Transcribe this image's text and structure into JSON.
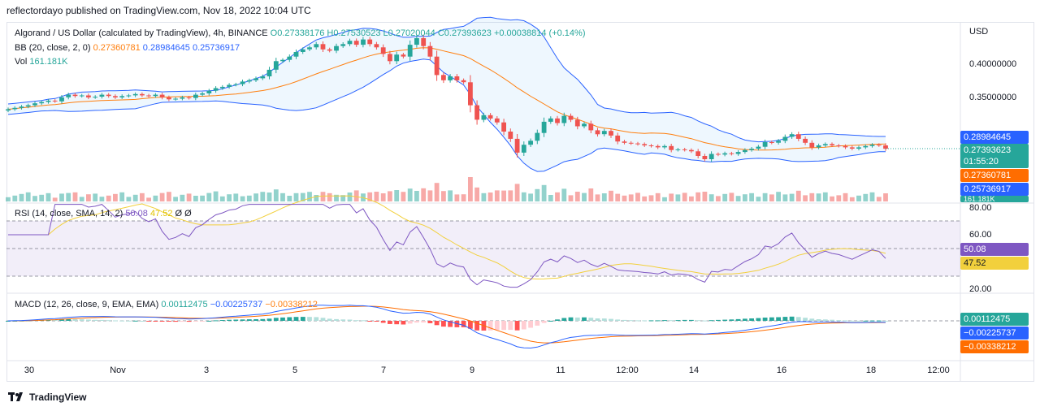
{
  "header": {
    "publisher_line": "reflectordayo published on TradingView.com, Nov 18, 2022 10:04 UTC"
  },
  "legend": {
    "symbol": "Algorand / US Dollar (calculated by TradingView), 4h, BINANCE",
    "open": "O0.27338176",
    "high": "H0.27530523",
    "low": "L0.27020044",
    "close": "C0.27393623",
    "change": "+0.00038814 (+0.14%)",
    "bb_label": "BB (20, close, 2, 0)",
    "bb_basis": "0.27360781",
    "bb_upper": "0.28984645",
    "bb_lower": "0.25736917",
    "vol_label": "Vol",
    "vol_value": "161.181K",
    "rsi_label": "RSI (14, close, SMA, 14, 2)",
    "rsi_value": "50.08",
    "rsi_sma": "47.52",
    "rsi_extra": "Ø Ø",
    "macd_label": "MACD (12, 26, close, 9, EMA, EMA)",
    "macd_hist": "0.00112475",
    "macd_line": "−0.00225737",
    "macd_signal": "−0.00338212"
  },
  "price_axis": {
    "currency": "USD",
    "ticks": [
      "0.40000000",
      "0.35000000"
    ]
  },
  "price_tags": {
    "bb_upper": "0.28984645",
    "last_price": "0.27393623",
    "countdown": "01:55:20",
    "bb_basis": "0.27360781",
    "bb_lower": "0.25736917",
    "vol_partial": "161.181K"
  },
  "rsi_axis": {
    "ticks": [
      "80.00",
      "60.00",
      "20.00"
    ],
    "tag_rsi": "50.08",
    "tag_sma": "47.52"
  },
  "macd_axis": {
    "tag_hist": "0.00112475",
    "tag_macd": "−0.00225737",
    "tag_signal": "−0.00338212"
  },
  "time_axis": {
    "labels": [
      "30",
      "Nov",
      "3",
      "5",
      "7",
      "9",
      "11",
      "12:00",
      "14",
      "16",
      "18",
      "12:00"
    ]
  },
  "footer": {
    "brand": "TradingView"
  },
  "colors": {
    "up": "#26a69a",
    "down": "#ef5350",
    "bb_basis": "#ff7f0e",
    "bb_band": "#2962ff",
    "rsi": "#7e57c2",
    "rsi_sma": "#f2d03c",
    "macd": "#2962ff",
    "signal": "#ff6d00"
  },
  "chart_data": {
    "type": "candlestick",
    "closes": [
      0.334,
      0.336,
      0.338,
      0.34,
      0.343,
      0.345,
      0.347,
      0.346,
      0.352,
      0.356,
      0.354,
      0.355,
      0.352,
      0.353,
      0.356,
      0.354,
      0.352,
      0.354,
      0.355,
      0.357,
      0.355,
      0.354,
      0.356,
      0.352,
      0.349,
      0.35,
      0.352,
      0.351,
      0.356,
      0.358,
      0.362,
      0.366,
      0.368,
      0.371,
      0.372,
      0.376,
      0.378,
      0.381,
      0.384,
      0.394,
      0.407,
      0.409,
      0.414,
      0.421,
      0.425,
      0.428,
      0.433,
      0.425,
      0.423,
      0.43,
      0.433,
      0.438,
      0.432,
      0.44,
      0.433,
      0.428,
      0.418,
      0.407,
      0.417,
      0.414,
      0.432,
      0.442,
      0.43,
      0.414,
      0.386,
      0.378,
      0.384,
      0.378,
      0.375,
      0.34,
      0.318,
      0.325,
      0.32,
      0.314,
      0.3,
      0.289,
      0.268,
      0.28,
      0.286,
      0.298,
      0.315,
      0.32,
      0.313,
      0.324,
      0.318,
      0.308,
      0.312,
      0.302,
      0.296,
      0.301,
      0.294,
      0.285,
      0.283,
      0.282,
      0.281,
      0.279,
      0.278,
      0.276,
      0.278,
      0.272,
      0.273,
      0.272,
      0.27,
      0.263,
      0.258,
      0.266,
      0.265,
      0.267,
      0.266,
      0.269,
      0.272,
      0.274,
      0.277,
      0.284,
      0.283,
      0.286,
      0.292,
      0.296,
      0.289,
      0.283,
      0.276,
      0.279,
      0.281,
      0.279,
      0.278,
      0.276,
      0.274,
      0.276,
      0.278,
      0.28,
      0.279,
      0.274
    ]
  }
}
